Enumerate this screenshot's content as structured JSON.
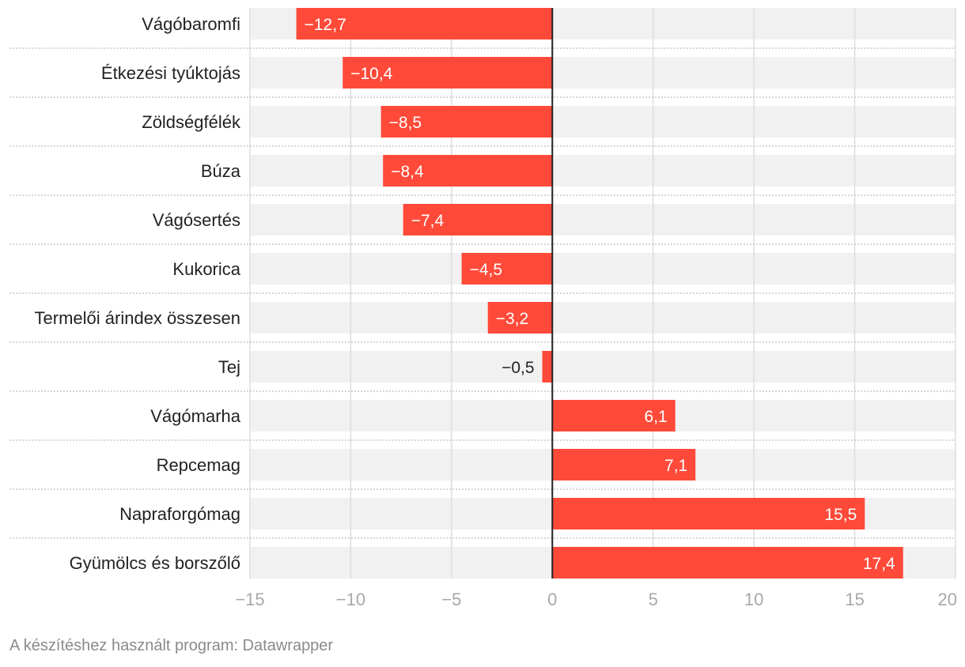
{
  "colors": {
    "bar": "#ff4a3a",
    "band": "#f1f1f1",
    "grid": "#dddddd",
    "zero": "#222222",
    "separator": "#bdbdbd",
    "label_inside": "#ffffff",
    "label_outside": "#222222",
    "tick": "#a8a8a8"
  },
  "chart_data": {
    "type": "bar",
    "orientation": "horizontal",
    "title": "",
    "xlabel": "",
    "ylabel": "",
    "xlim": [
      -15,
      20
    ],
    "ticks": [
      -15,
      -10,
      -5,
      0,
      5,
      10,
      15,
      20
    ],
    "tick_labels": [
      "−15",
      "−10",
      "−5",
      "0",
      "5",
      "10",
      "15",
      "20"
    ],
    "grid": true,
    "categories": [
      "Vágóbaromfi",
      "Étkezési tyúktojás",
      "Zöldségfélék",
      "Búza",
      "Vágósertés",
      "Kukorica",
      "Termelői árindex összesen",
      "Tej",
      "Vágómarha",
      "Repcemag",
      "Napraforgómag",
      "Gyümölcs és borszőlő"
    ],
    "values": [
      -12.7,
      -10.4,
      -8.5,
      -8.4,
      -7.4,
      -4.5,
      -3.2,
      -0.5,
      6.1,
      7.1,
      15.5,
      17.4
    ],
    "value_labels": [
      "−12,7",
      "−10,4",
      "−8,5",
      "−8,4",
      "−7,4",
      "−4,5",
      "−3,2",
      "−0,5",
      "6,1",
      "7,1",
      "15,5",
      "17,4"
    ]
  },
  "footer": {
    "source_text": "A készítéshez használt program: Datawrapper"
  }
}
